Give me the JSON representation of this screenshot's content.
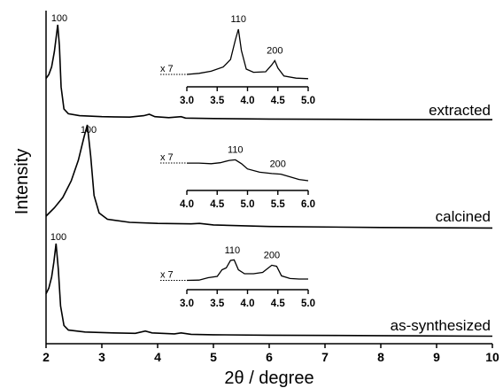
{
  "chart_data": {
    "type": "line",
    "xlabel": "2θ / degree",
    "ylabel": "Intensity",
    "xlim": [
      2,
      10
    ],
    "x_ticks": [
      "2",
      "3",
      "4",
      "5",
      "6",
      "7",
      "8",
      "9",
      "10"
    ],
    "series": [
      {
        "name": "extracted",
        "peak_label": "100",
        "points": [
          [
            2.0,
            0.44
          ],
          [
            2.05,
            0.48
          ],
          [
            2.1,
            0.56
          ],
          [
            2.15,
            0.72
          ],
          [
            2.18,
            0.86
          ],
          [
            2.21,
            1.0
          ],
          [
            2.24,
            0.78
          ],
          [
            2.27,
            0.35
          ],
          [
            2.32,
            0.12
          ],
          [
            2.4,
            0.07
          ],
          [
            2.6,
            0.05
          ],
          [
            3.0,
            0.04
          ],
          [
            3.5,
            0.035
          ],
          [
            3.75,
            0.05
          ],
          [
            3.85,
            0.065
          ],
          [
            3.95,
            0.04
          ],
          [
            4.2,
            0.03
          ],
          [
            4.42,
            0.04
          ],
          [
            4.5,
            0.025
          ],
          [
            5.0,
            0.02
          ],
          [
            6.0,
            0.015
          ],
          [
            8.0,
            0.01
          ],
          [
            10.0,
            0.008
          ]
        ],
        "inset": {
          "x_ticks": [
            "3.0",
            "3.5",
            "4.0",
            "4.5",
            "5.0"
          ],
          "xlim": [
            3.0,
            5.0
          ],
          "magnification": "x 7",
          "peak_labels": [
            {
              "x": 3.85,
              "text": "110"
            },
            {
              "x": 4.45,
              "text": "200"
            }
          ],
          "points": [
            [
              3.0,
              0.1
            ],
            [
              3.2,
              0.12
            ],
            [
              3.4,
              0.16
            ],
            [
              3.6,
              0.24
            ],
            [
              3.72,
              0.38
            ],
            [
              3.8,
              0.75
            ],
            [
              3.85,
              0.95
            ],
            [
              3.9,
              0.55
            ],
            [
              3.98,
              0.2
            ],
            [
              4.1,
              0.14
            ],
            [
              4.3,
              0.15
            ],
            [
              4.4,
              0.28
            ],
            [
              4.45,
              0.36
            ],
            [
              4.5,
              0.22
            ],
            [
              4.6,
              0.07
            ],
            [
              4.8,
              0.03
            ],
            [
              5.0,
              0.02
            ]
          ]
        }
      },
      {
        "name": "calcined",
        "peak_label": "100",
        "points": [
          [
            2.0,
            0.12
          ],
          [
            2.15,
            0.2
          ],
          [
            2.3,
            0.3
          ],
          [
            2.45,
            0.46
          ],
          [
            2.58,
            0.66
          ],
          [
            2.68,
            0.88
          ],
          [
            2.74,
            1.0
          ],
          [
            2.8,
            0.7
          ],
          [
            2.86,
            0.32
          ],
          [
            2.95,
            0.15
          ],
          [
            3.1,
            0.09
          ],
          [
            3.5,
            0.06
          ],
          [
            4.0,
            0.05
          ],
          [
            4.6,
            0.045
          ],
          [
            4.75,
            0.05
          ],
          [
            5.0,
            0.035
          ],
          [
            6.0,
            0.02
          ],
          [
            8.0,
            0.01
          ],
          [
            10.0,
            0.005
          ]
        ],
        "inset": {
          "x_ticks": [
            "4.0",
            "4.5",
            "5.0",
            "5.5",
            "6.0"
          ],
          "xlim": [
            4.0,
            6.0
          ],
          "magnification": "x 7",
          "peak_labels": [
            {
              "x": 4.8,
              "text": "110"
            },
            {
              "x": 5.5,
              "text": "200"
            }
          ],
          "points": [
            [
              4.0,
              0.62
            ],
            [
              4.2,
              0.62
            ],
            [
              4.4,
              0.6
            ],
            [
              4.55,
              0.63
            ],
            [
              4.7,
              0.7
            ],
            [
              4.8,
              0.72
            ],
            [
              4.9,
              0.6
            ],
            [
              5.0,
              0.44
            ],
            [
              5.2,
              0.34
            ],
            [
              5.4,
              0.3
            ],
            [
              5.55,
              0.28
            ],
            [
              5.7,
              0.2
            ],
            [
              5.85,
              0.12
            ],
            [
              6.0,
              0.08
            ]
          ]
        }
      },
      {
        "name": "as-synthesized",
        "peak_label": "100",
        "points": [
          [
            2.0,
            0.46
          ],
          [
            2.05,
            0.52
          ],
          [
            2.1,
            0.64
          ],
          [
            2.14,
            0.8
          ],
          [
            2.18,
            1.0
          ],
          [
            2.22,
            0.72
          ],
          [
            2.26,
            0.33
          ],
          [
            2.32,
            0.12
          ],
          [
            2.4,
            0.07
          ],
          [
            2.7,
            0.05
          ],
          [
            3.2,
            0.04
          ],
          [
            3.6,
            0.035
          ],
          [
            3.78,
            0.06
          ],
          [
            3.9,
            0.04
          ],
          [
            4.3,
            0.03
          ],
          [
            4.42,
            0.04
          ],
          [
            4.6,
            0.025
          ],
          [
            5.0,
            0.02
          ],
          [
            6.0,
            0.015
          ],
          [
            8.0,
            0.01
          ],
          [
            10.0,
            0.005
          ]
        ],
        "inset": {
          "x_ticks": [
            "3.0",
            "3.5",
            "4.0",
            "4.5",
            "5.0"
          ],
          "xlim": [
            3.0,
            5.0
          ],
          "magnification": "x 7",
          "peak_labels": [
            {
              "x": 3.75,
              "text": "110"
            },
            {
              "x": 4.4,
              "text": "200"
            }
          ],
          "points": [
            [
              3.0,
              0.05
            ],
            [
              3.2,
              0.06
            ],
            [
              3.35,
              0.15
            ],
            [
              3.5,
              0.2
            ],
            [
              3.58,
              0.45
            ],
            [
              3.65,
              0.52
            ],
            [
              3.72,
              0.8
            ],
            [
              3.78,
              0.82
            ],
            [
              3.85,
              0.45
            ],
            [
              3.95,
              0.3
            ],
            [
              4.1,
              0.3
            ],
            [
              4.25,
              0.35
            ],
            [
              4.4,
              0.62
            ],
            [
              4.48,
              0.58
            ],
            [
              4.56,
              0.22
            ],
            [
              4.7,
              0.12
            ],
            [
              4.85,
              0.1
            ],
            [
              5.0,
              0.1
            ]
          ]
        }
      }
    ]
  }
}
